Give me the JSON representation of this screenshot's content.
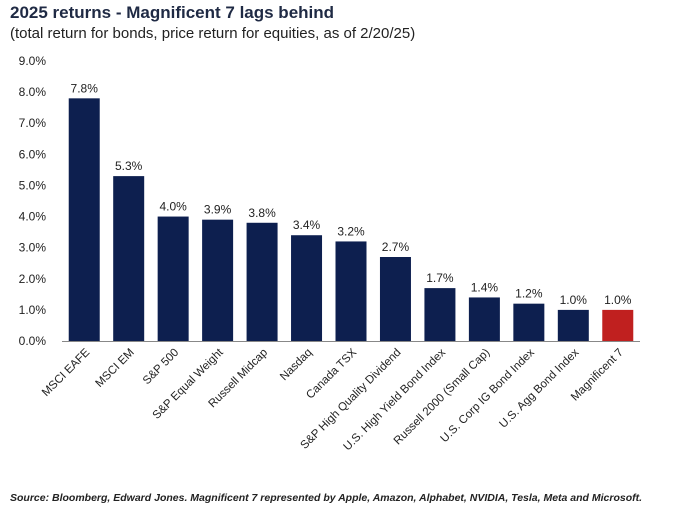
{
  "chart_data": {
    "type": "bar",
    "title": "2025 returns - Magnificent 7 lags behind",
    "subtitle": "(total return for bonds, price return for equities, as of 2/20/25)",
    "source": "Source: Bloomberg, Edward Jones. Magnificent 7 represented by Apple, Amazon, Alphabet, NVIDIA, Tesla, Meta and Microsoft.",
    "categories": [
      "MSCI EAFE",
      "MSCI EM",
      "S&P 500",
      "S&P Equal Weight",
      "Russell Midcap",
      "Nasdaq",
      "Canada TSX",
      "S&P High Quality Dividend",
      "U.S. High Yield Bond Index",
      "Russell 2000 (Small Cap)",
      "U.S. Corp IG Bond Index",
      "U.S. Agg Bond Index",
      "Magnificent 7"
    ],
    "values": [
      7.8,
      5.3,
      4.0,
      3.9,
      3.8,
      3.4,
      3.2,
      2.7,
      1.7,
      1.4,
      1.2,
      1.0,
      1.0
    ],
    "value_labels": [
      "7.8%",
      "5.3%",
      "4.0%",
      "3.9%",
      "3.8%",
      "3.4%",
      "3.2%",
      "2.7%",
      "1.7%",
      "1.4%",
      "1.2%",
      "1.0%",
      "1.0%"
    ],
    "ylim": [
      0,
      9
    ],
    "yticks": [
      0,
      1,
      2,
      3,
      4,
      5,
      6,
      7,
      8,
      9
    ],
    "ytick_labels": [
      "0.0%",
      "1.0%",
      "2.0%",
      "3.0%",
      "4.0%",
      "5.0%",
      "6.0%",
      "7.0%",
      "8.0%",
      "9.0%"
    ],
    "xlabel": "",
    "ylabel": "",
    "grid": false,
    "bar_color": "#0d1f4f",
    "highlight_color": "#c0201f",
    "highlight_index": 12
  }
}
